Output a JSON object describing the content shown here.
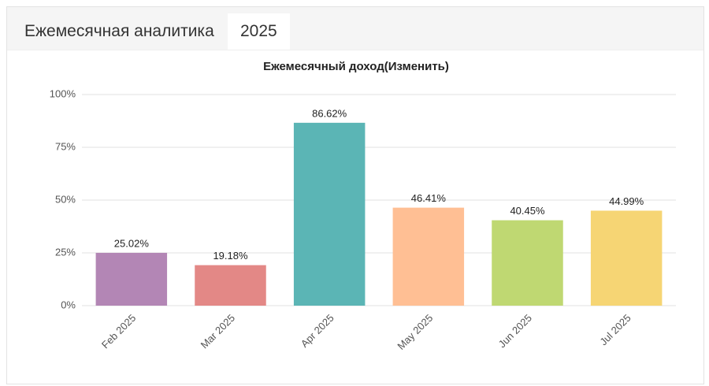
{
  "tabs": [
    "Ежемесячная аналитика",
    "2025"
  ],
  "chart_data": {
    "type": "bar",
    "title": "Ежемесячный доход(Изменить)",
    "categories": [
      "Feb 2025",
      "Mar 2025",
      "Apr 2025",
      "May 2025",
      "Jun 2025",
      "Jul 2025"
    ],
    "values": [
      25.02,
      19.18,
      86.62,
      46.41,
      40.45,
      44.99
    ],
    "value_labels": [
      "25.02%",
      "19.18%",
      "86.62%",
      "46.41%",
      "40.45%",
      "44.99%"
    ],
    "colors": [
      "#b386b5",
      "#e38886",
      "#5bb5b5",
      "#ffbf94",
      "#bfd872",
      "#f6d574"
    ],
    "ylim": [
      0,
      100
    ],
    "yticks": [
      {
        "value": 0,
        "label": "0%"
      },
      {
        "value": 25,
        "label": "25%"
      },
      {
        "value": 50,
        "label": "50%"
      },
      {
        "value": 75,
        "label": "75%"
      },
      {
        "value": 100,
        "label": "100%"
      }
    ],
    "grid": true
  }
}
